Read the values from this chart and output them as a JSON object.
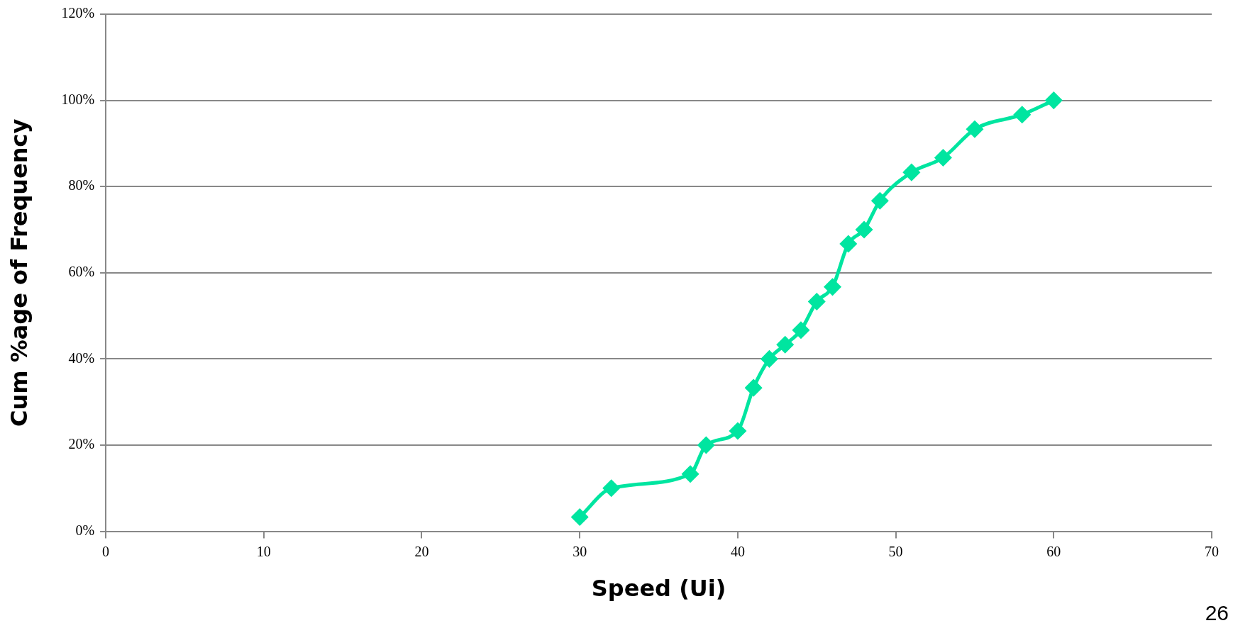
{
  "chart_data": {
    "type": "line",
    "xlabel": "Speed (Ui)",
    "ylabel": "Cum %age of Frequency",
    "x": [
      30,
      32,
      37,
      38,
      40,
      41,
      42,
      43,
      44,
      45,
      46,
      47,
      48,
      49,
      51,
      53,
      55,
      58,
      60
    ],
    "series": [
      {
        "color": "#00e5a0",
        "values": [
          3.3,
          10,
          13.3,
          20,
          23.3,
          33.3,
          40,
          43.3,
          46.7,
          53.3,
          56.7,
          66.7,
          70,
          76.7,
          83.3,
          86.7,
          93.3,
          96.7,
          100
        ]
      }
    ],
    "xlim": [
      0,
      70
    ],
    "xticks": [
      0,
      10,
      20,
      30,
      40,
      50,
      60,
      70
    ],
    "ylim": [
      0,
      120
    ],
    "yticks": [
      {
        "value": 0,
        "label": "0%"
      },
      {
        "value": 20,
        "label": "20%"
      },
      {
        "value": 40,
        "label": "40%"
      },
      {
        "value": 60,
        "label": "60%"
      },
      {
        "value": 80,
        "label": "80%"
      },
      {
        "value": 100,
        "label": "100%"
      },
      {
        "value": 120,
        "label": "120%"
      }
    ],
    "grid": "y",
    "legend": false,
    "marker": "diamond",
    "line_style": "solid",
    "annotations": [
      "26"
    ]
  }
}
